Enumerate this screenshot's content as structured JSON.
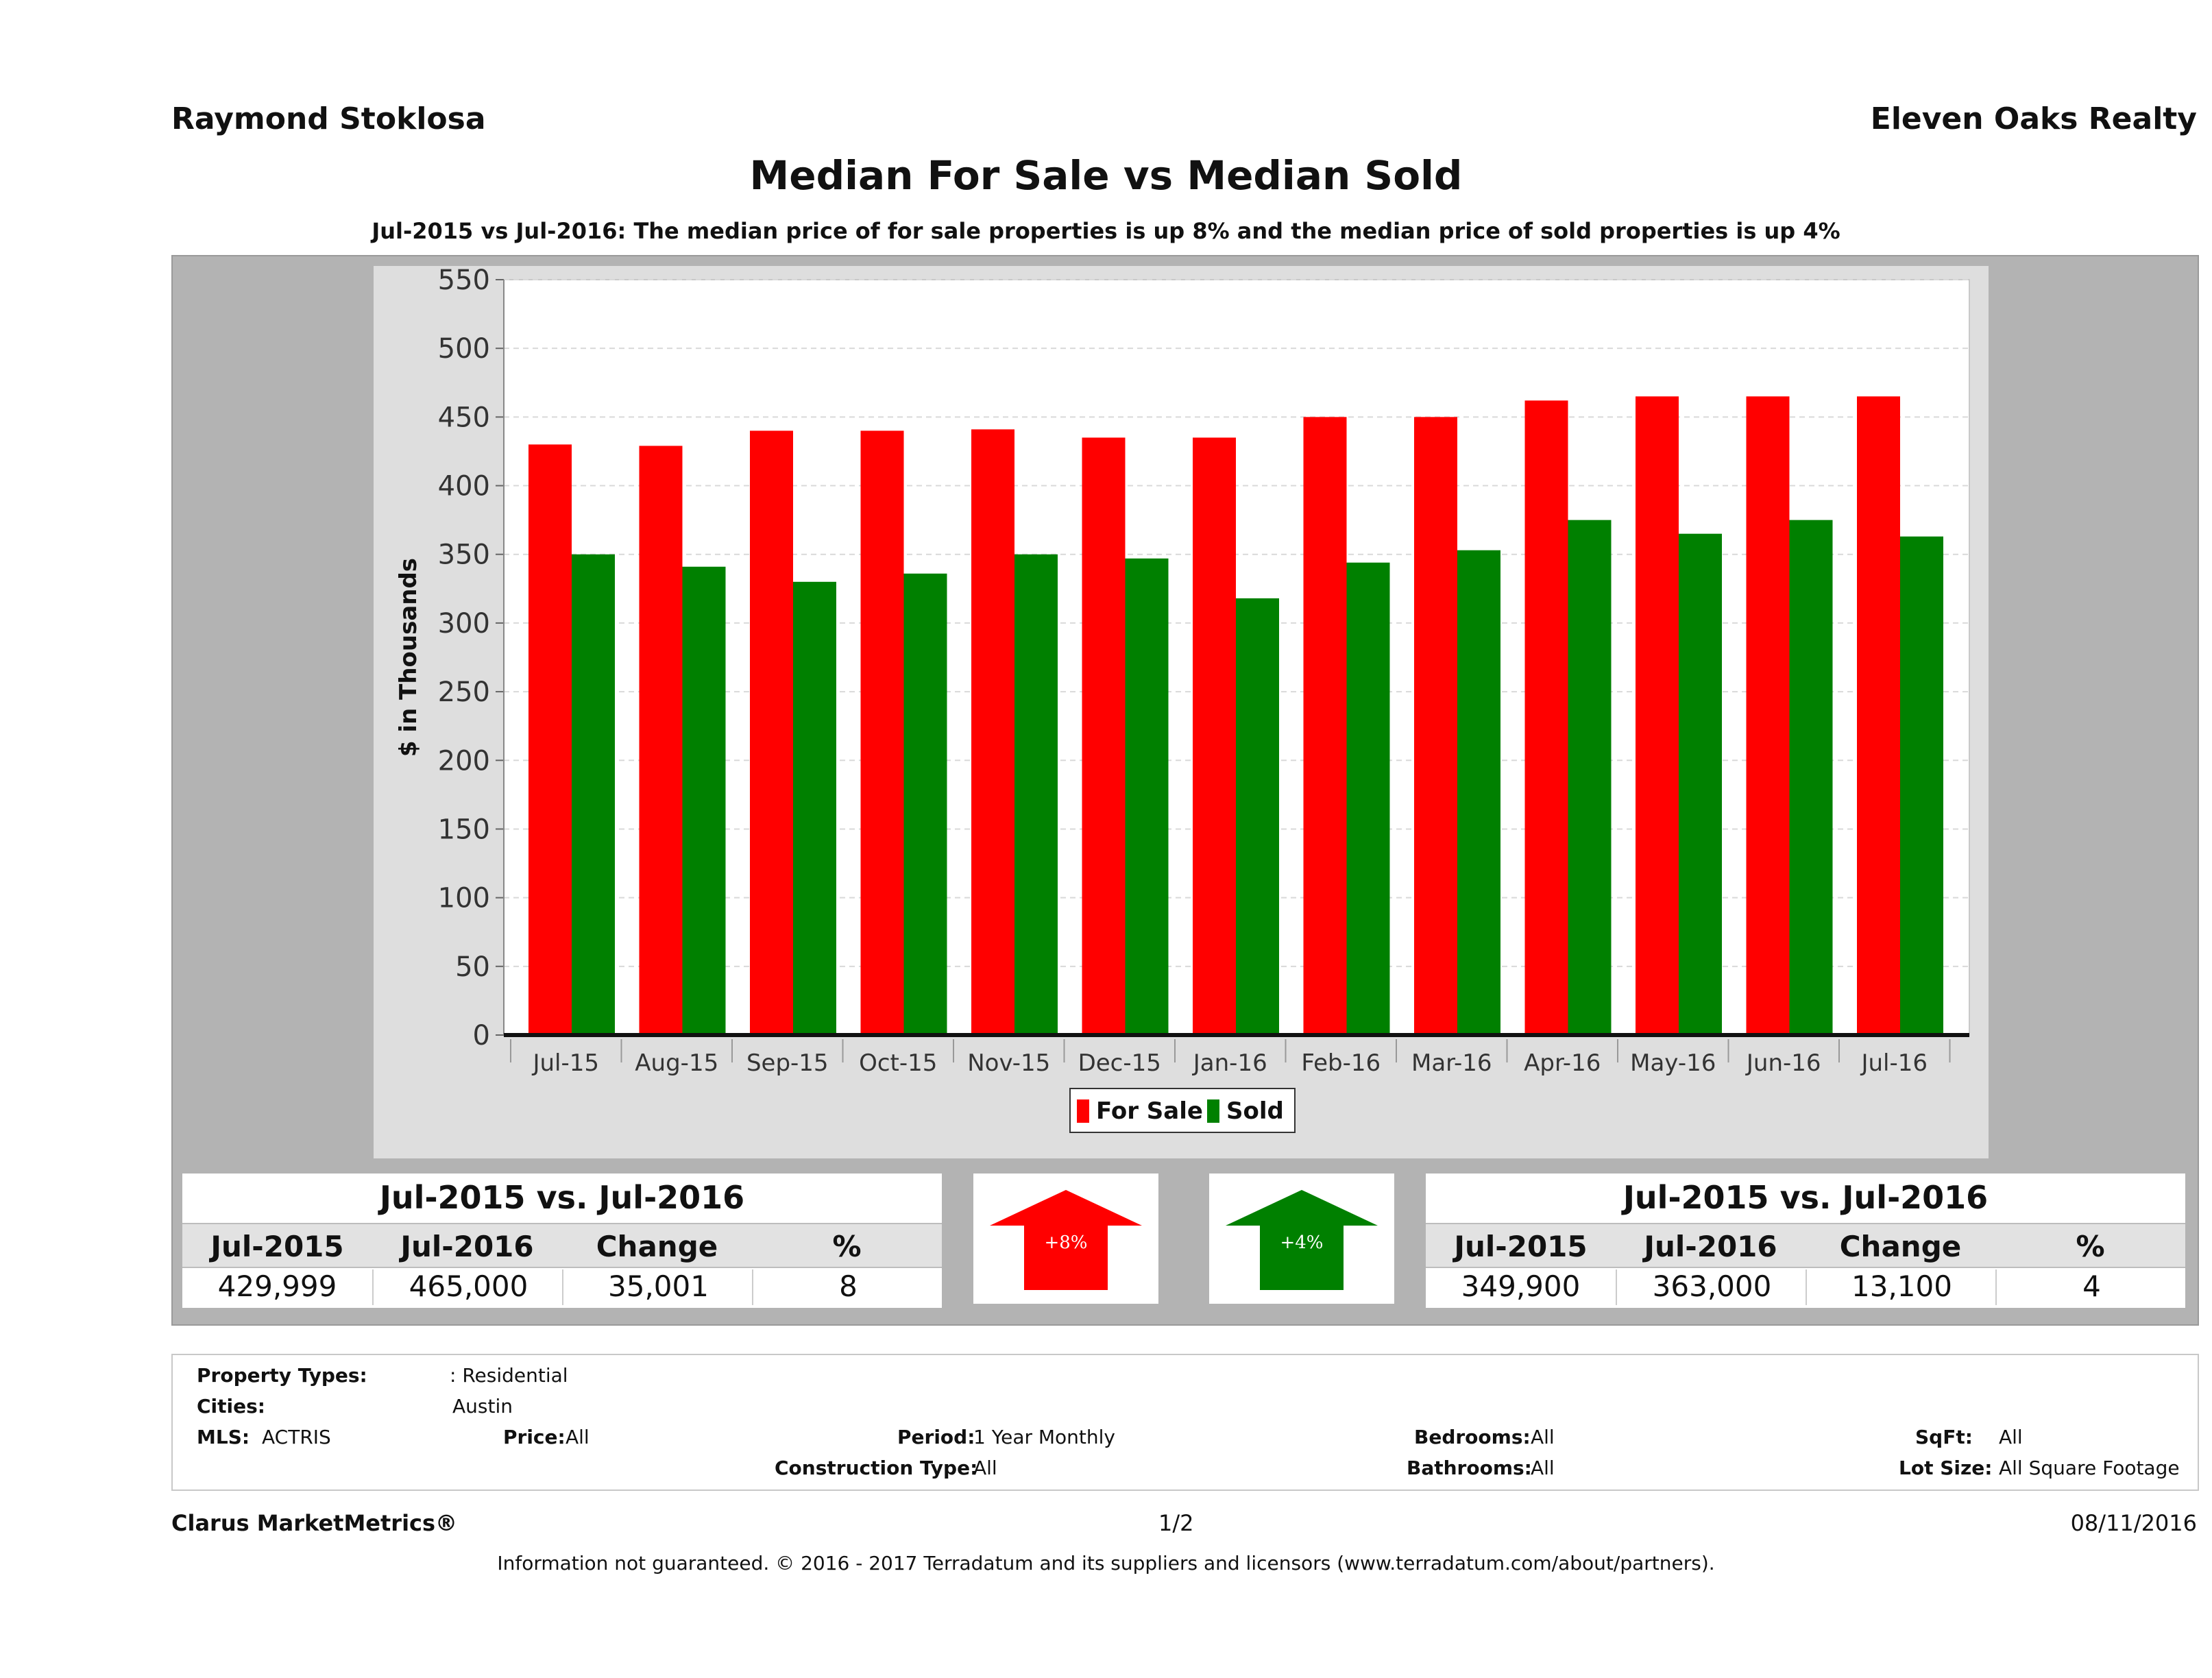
{
  "header": {
    "agent": "Raymond Stoklosa",
    "company": "Eleven Oaks Realty"
  },
  "chart_data": {
    "type": "bar",
    "title": "Median For Sale vs Median Sold",
    "subtitle": "Jul-2015 vs Jul-2016: The median price of for sale properties is up 8% and the median price of sold properties is up 4%",
    "ylabel": "$ in Thousands",
    "ylim": [
      0,
      550
    ],
    "yticks": [
      0,
      50,
      100,
      150,
      200,
      250,
      300,
      350,
      400,
      450,
      500,
      550
    ],
    "grid": true,
    "legend_position": "bottom",
    "categories": [
      "Jul-15",
      "Aug-15",
      "Sep-15",
      "Oct-15",
      "Nov-15",
      "Dec-15",
      "Jan-16",
      "Feb-16",
      "Mar-16",
      "Apr-16",
      "May-16",
      "Jun-16",
      "Jul-16"
    ],
    "series": [
      {
        "name": "For Sale",
        "color": "#ff0000",
        "values": [
          430,
          429,
          440,
          440,
          441,
          435,
          435,
          450,
          450,
          462,
          465,
          465,
          465
        ]
      },
      {
        "name": "Sold",
        "color": "#008000",
        "values": [
          350,
          341,
          330,
          336,
          350,
          347,
          318,
          344,
          353,
          375,
          365,
          375,
          363
        ]
      }
    ]
  },
  "summary_left": {
    "heading": "Jul-2015 vs. Jul-2016",
    "columns": [
      "Jul-2015",
      "Jul-2016",
      "Change",
      "%"
    ],
    "values": [
      "429,999",
      "465,000",
      "35,001",
      "8"
    ]
  },
  "arrow_left": {
    "label": "+8%",
    "color": "#ff0000"
  },
  "arrow_right": {
    "label": "+4%",
    "color": "#008000"
  },
  "summary_right": {
    "heading": "Jul-2015 vs. Jul-2016",
    "columns": [
      "Jul-2015",
      "Jul-2016",
      "Change",
      "%"
    ],
    "values": [
      "349,900",
      "363,000",
      "13,100",
      "4"
    ]
  },
  "filters": {
    "property_types_label": "Property Types:",
    "property_types_value": ": Residential",
    "cities_label": "Cities:",
    "cities_value": "Austin",
    "mls_label": "MLS:",
    "mls_value": "ACTRIS",
    "price_label": "Price:",
    "price_value": "All",
    "period_label": "Period:",
    "period_value": "1 Year Monthly",
    "construction_label": "Construction Type:",
    "construction_value": "All",
    "bedrooms_label": "Bedrooms:",
    "bedrooms_value": "All",
    "bathrooms_label": "Bathrooms:",
    "bathrooms_value": "All",
    "sqft_label": "SqFt:",
    "sqft_value": "All",
    "lotsize_label": "Lot Size:",
    "lotsize_value": "All Square Footage"
  },
  "footer": {
    "brand": "Clarus MarketMetrics®",
    "page": "1/2",
    "date": "08/11/2016",
    "disclaimer": "Information not guaranteed. © 2016 - 2017 Terradatum and its suppliers and licensors (www.terradatum.com/about/partners)."
  }
}
